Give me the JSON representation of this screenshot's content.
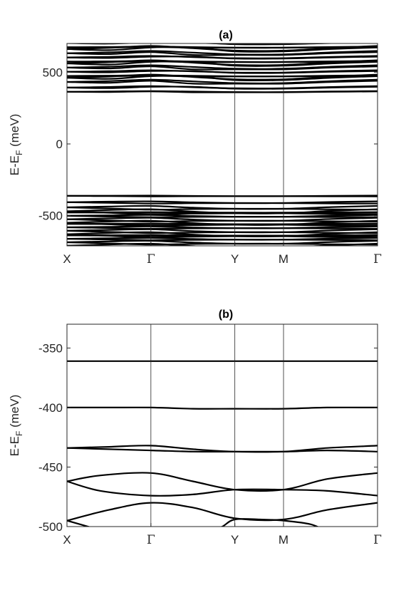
{
  "chart_data": [
    {
      "type": "line",
      "title": "(a)",
      "ylabel": "E-E_F (meV)",
      "ylabel_main": "E-E",
      "ylabel_sub": "F",
      "ylabel_unit": " (meV)",
      "ylim": [
        -710,
        700
      ],
      "yticks": [
        -500,
        0,
        500
      ],
      "ytick_labels": [
        "-500",
        "0",
        "500"
      ],
      "k_points": [
        {
          "label": "X",
          "pos": 0
        },
        {
          "label": "Γ",
          "pos": 1
        },
        {
          "label": "Y",
          "pos": 2
        },
        {
          "label": "M",
          "pos": 2.58
        },
        {
          "label": "Γ",
          "pos": 3.7
        }
      ],
      "xlim": [
        0,
        3.7
      ],
      "conduction_band_minima_meV": [
        360,
        385,
        420,
        445,
        470,
        495,
        520,
        545,
        570,
        595,
        620,
        645,
        670,
        695
      ],
      "valence_band_maxima_meV": [
        -360,
        -400,
        -432,
        -455,
        -475,
        -495,
        -515,
        -535,
        -555,
        -575,
        -595,
        -615,
        -635,
        -655,
        -675,
        -695
      ]
    },
    {
      "type": "line",
      "title": "(b)",
      "ylabel": "E-E_F (meV)",
      "ylabel_main": "E-E",
      "ylabel_sub": "F",
      "ylabel_unit": " (meV)",
      "ylim": [
        -500,
        -330
      ],
      "yticks": [
        -500,
        -450,
        -400,
        -350
      ],
      "ytick_labels": [
        "-500",
        "-450",
        "-400",
        "-350"
      ],
      "k_points": [
        {
          "label": "X",
          "pos": 0
        },
        {
          "label": "Γ",
          "pos": 1
        },
        {
          "label": "Y",
          "pos": 2
        },
        {
          "label": "M",
          "pos": 2.58
        },
        {
          "label": "Γ",
          "pos": 3.7
        }
      ],
      "xlim": [
        0,
        3.7
      ],
      "series": [
        {
          "x": [
            0,
            0.5,
            1,
            1.5,
            2,
            2.58,
            3.1,
            3.7
          ],
          "y": [
            -361,
            -361,
            -361,
            -361,
            -361,
            -361,
            -361,
            -361
          ]
        },
        {
          "x": [
            0,
            0.5,
            1,
            1.5,
            2,
            2.58,
            3.1,
            3.7
          ],
          "y": [
            -400,
            -400,
            -400,
            -401,
            -401,
            -401,
            -400,
            -400
          ]
        },
        {
          "x": [
            0,
            0.5,
            1,
            1.5,
            2,
            2.58,
            3.1,
            3.7
          ],
          "y": [
            -434,
            -433,
            -432,
            -435,
            -437,
            -437,
            -434,
            -432
          ]
        },
        {
          "x": [
            0,
            0.5,
            1,
            1.5,
            2,
            2.58,
            3.1,
            3.7
          ],
          "y": [
            -434,
            -435,
            -436,
            -437,
            -437,
            -437,
            -436,
            -437
          ]
        },
        {
          "x": [
            0,
            0.4,
            1,
            1.5,
            2,
            2.58,
            3.1,
            3.7
          ],
          "y": [
            -462,
            -457,
            -455,
            -462,
            -469,
            -469,
            -460,
            -455
          ]
        },
        {
          "x": [
            0,
            0.4,
            1,
            1.5,
            2,
            2.58,
            3.1,
            3.7
          ],
          "y": [
            -462,
            -470,
            -474,
            -473,
            -469,
            -469,
            -470,
            -474
          ]
        },
        {
          "x": [
            0,
            0.5,
            1,
            1.5,
            2,
            2.58,
            3.1,
            3.7
          ],
          "y": [
            -495,
            -486,
            -480,
            -484,
            -493,
            -494,
            -486,
            -480
          ]
        },
        {
          "x": [
            0,
            0.3,
            0.6
          ],
          "y": [
            -495,
            -501,
            -507
          ]
        },
        {
          "x": [
            1.7,
            1.85,
            2,
            2.3,
            2.58,
            2.9,
            3.1
          ],
          "y": [
            -504,
            -500,
            -494,
            -494,
            -495,
            -498,
            -504
          ]
        }
      ]
    }
  ]
}
